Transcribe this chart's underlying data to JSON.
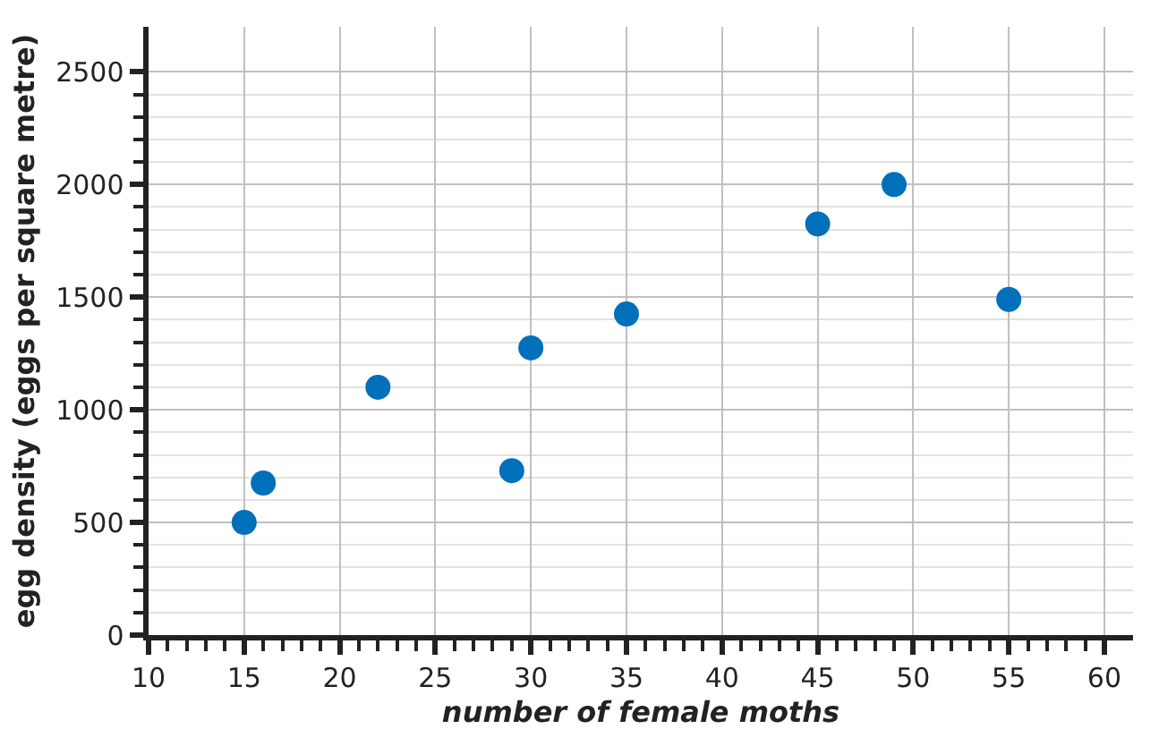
{
  "chart_data": {
    "type": "scatter",
    "xlabel": "number of female moths",
    "ylabel": "egg density (eggs per square metre)",
    "x": [
      15,
      16,
      22,
      29,
      30,
      35,
      45,
      49,
      55
    ],
    "series": [
      {
        "color": "#0070bb",
        "values": [
          500,
          675,
          1100,
          730,
          1275,
          1425,
          1825,
          2000,
          1490
        ]
      }
    ],
    "marker": "circle",
    "grid": true,
    "xlim": [
      10,
      61.5
    ],
    "ylim": [
      0,
      2700
    ],
    "xticks": [
      10,
      {
        "value": 11,
        "label": null
      },
      {
        "value": 12,
        "label": null
      },
      {
        "value": 13,
        "label": null
      },
      {
        "value": 14,
        "label": null
      },
      15,
      {
        "value": 16,
        "label": null
      },
      {
        "value": 17,
        "label": null
      },
      {
        "value": 18,
        "label": null
      },
      {
        "value": 19,
        "label": null
      },
      20,
      {
        "value": 21,
        "label": null
      },
      {
        "value": 22,
        "label": null
      },
      {
        "value": 23,
        "label": null
      },
      {
        "value": 24,
        "label": null
      },
      25,
      {
        "value": 26,
        "label": null
      },
      {
        "value": 27,
        "label": null
      },
      {
        "value": 28,
        "label": null
      },
      {
        "value": 29,
        "label": null
      },
      30,
      {
        "value": 31,
        "label": null
      },
      {
        "value": 32,
        "label": null
      },
      {
        "value": 33,
        "label": null
      },
      {
        "value": 34,
        "label": null
      },
      35,
      {
        "value": 36,
        "label": null
      },
      {
        "value": 37,
        "label": null
      },
      {
        "value": 38,
        "label": null
      },
      {
        "value": 39,
        "label": null
      },
      40,
      {
        "value": 41,
        "label": null
      },
      {
        "value": 42,
        "label": null
      },
      {
        "value": 43,
        "label": null
      },
      {
        "value": 44,
        "label": null
      },
      45,
      {
        "value": 46,
        "label": null
      },
      {
        "value": 47,
        "label": null
      },
      {
        "value": 48,
        "label": null
      },
      {
        "value": 49,
        "label": null
      },
      50,
      {
        "value": 51,
        "label": null
      },
      {
        "value": 52,
        "label": null
      },
      {
        "value": 53,
        "label": null
      },
      {
        "value": 54,
        "label": null
      },
      55,
      {
        "value": 56,
        "label": null
      },
      {
        "value": 57,
        "label": null
      },
      {
        "value": 58,
        "label": null
      },
      {
        "value": 59,
        "label": null
      },
      60
    ],
    "yticks": [
      0,
      {
        "value": 100,
        "label": null
      },
      {
        "value": 200,
        "label": null
      },
      {
        "value": 300,
        "label": null
      },
      {
        "value": 400,
        "label": null
      },
      500,
      {
        "value": 600,
        "label": null
      },
      {
        "value": 700,
        "label": null
      },
      {
        "value": 800,
        "label": null
      },
      {
        "value": 900,
        "label": null
      },
      1000,
      {
        "value": 1100,
        "label": null
      },
      {
        "value": 1200,
        "label": null
      },
      {
        "value": 1300,
        "label": null
      },
      {
        "value": 1400,
        "label": null
      },
      1500,
      {
        "value": 1600,
        "label": null
      },
      {
        "value": 1700,
        "label": null
      },
      {
        "value": 1800,
        "label": null
      },
      {
        "value": 1900,
        "label": null
      },
      2000,
      {
        "value": 2100,
        "label": null
      },
      {
        "value": 2200,
        "label": null
      },
      {
        "value": 2300,
        "label": null
      },
      {
        "value": 2400,
        "label": null
      },
      2500
    ]
  }
}
